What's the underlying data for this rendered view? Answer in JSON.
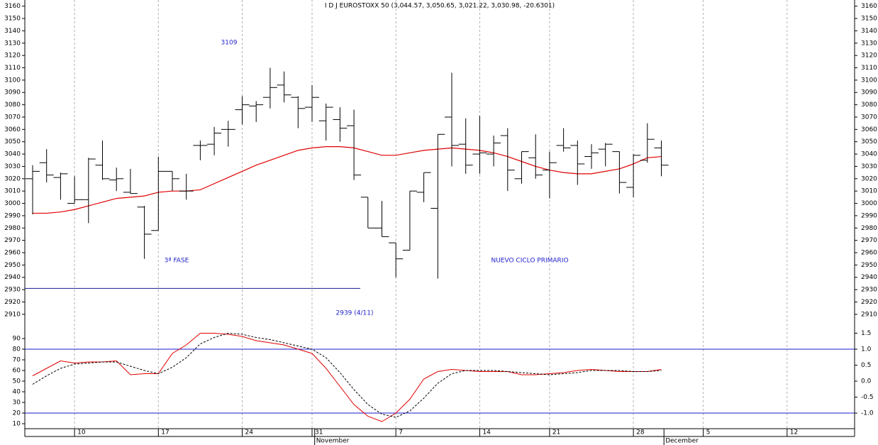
{
  "chart_data": [
    {
      "type": "ohlc",
      "title": "I D J EUROSTOXX 50 (3,044.57, 3,050.65, 3,021.22, 3,030.98, -20.6301)",
      "color": "#000000",
      "open": [
        3020,
        3033,
        3021,
        3000,
        3003,
        3031,
        3019,
        3009,
        2997,
        2978,
        3026,
        3010,
        3047,
        3048,
        3060,
        3076,
        3079,
        3086,
        3096,
        3086,
        3078,
        3067,
        3068,
        3063,
        3005,
        2980,
        2968,
        2962,
        3009,
        2996,
        3070,
        3048,
        3040,
        3040,
        3055,
        3020,
        3037,
        3027,
        3047,
        3047,
        3038,
        3044,
        3042,
        3013,
        3035,
        3045,
        null,
        null,
        null,
        null,
        null,
        null,
        null,
        null,
        null,
        null,
        null,
        null,
        null
      ],
      "high": [
        3031,
        3044,
        3025,
        3022,
        3037,
        3051,
        3029,
        3028,
        2998,
        3038,
        3026,
        3024,
        3051,
        3062,
        3067,
        3087,
        3083,
        3110,
        3107,
        3087,
        3096,
        3081,
        3078,
        3076,
        3005,
        3002,
        2968,
        3010,
        3025,
        3056,
        3106,
        3069,
        3071,
        3055,
        3061,
        3042,
        3056,
        3042,
        3061,
        3051,
        3048,
        3049,
        3042,
        3040,
        3065,
        3051,
        null,
        null,
        null,
        null,
        null,
        null,
        null,
        null,
        null,
        null,
        null,
        null,
        null
      ],
      "low": [
        2991,
        3017,
        3003,
        3000,
        2984,
        3019,
        3010,
        3008,
        2955,
        2978,
        3010,
        3003,
        3035,
        3039,
        3046,
        3064,
        3066,
        3077,
        3082,
        3061,
        3066,
        3051,
        3050,
        3019,
        2980,
        2973,
        2940,
        2962,
        3001,
        2939,
        3030,
        3024,
        3024,
        3030,
        3010,
        3016,
        3020,
        3004,
        3042,
        3015,
        3028,
        3030,
        3008,
        3005,
        3033,
        3022,
        null,
        null,
        null,
        null,
        null,
        null,
        null,
        null,
        null,
        null,
        null,
        null,
        null
      ],
      "close": [
        3026,
        3023,
        3024,
        3003,
        3036,
        3020,
        3020,
        3008,
        2975,
        3026,
        3020,
        3010,
        3047,
        3057,
        3060,
        3080,
        3080,
        3094,
        3088,
        3077,
        3086,
        3078,
        3061,
        3023,
        2980,
        2973,
        2955,
        3010,
        3025,
        3056,
        3047,
        3031,
        3041,
        3049,
        3027,
        3042,
        3023,
        3033,
        3045,
        3032,
        3041,
        3048,
        3017,
        3039,
        3052,
        3031,
        null,
        null,
        null,
        null,
        null,
        null,
        null,
        null,
        null,
        null,
        null,
        null,
        null
      ],
      "moving_average": {
        "color": "#e00000",
        "values": [
          2992,
          2992,
          2993,
          2995,
          2998,
          3001,
          3004,
          3005,
          3006,
          3009,
          3010,
          3010,
          3011,
          3016,
          3021,
          3026,
          3031,
          3035,
          3039,
          3043,
          3045,
          3046,
          3046,
          3045,
          3042,
          3039,
          3039,
          3041,
          3043,
          3044,
          3045,
          3044,
          3043,
          3041,
          3038,
          3034,
          3030,
          3027,
          3025,
          3024,
          3024,
          3026,
          3028,
          3032,
          3037,
          3038,
          null,
          null,
          null,
          null,
          null,
          null,
          null,
          null,
          null,
          null,
          null,
          null,
          null
        ]
      },
      "support_line": {
        "value": 2931,
        "color": "#1a1a8c"
      },
      "annotations": [
        "3109",
        "3ª FASE",
        "NUEVO CICLO PRIMARIO",
        "2939 (4/11)"
      ],
      "annotation_color": "#2222cc",
      "ylim": [
        2903,
        3165
      ],
      "yticks": [
        2910,
        2920,
        2930,
        2940,
        2950,
        2960,
        2970,
        2980,
        2990,
        3000,
        3010,
        3020,
        3030,
        3040,
        3050,
        3060,
        3070,
        3080,
        3090,
        3100,
        3110,
        3120,
        3130,
        3140,
        3150,
        3160
      ]
    },
    {
      "type": "line",
      "categories": [
        null,
        null,
        null,
        "10",
        null,
        null,
        null,
        null,
        null,
        "17",
        null,
        null,
        null,
        null,
        null,
        "24",
        null,
        null,
        null,
        null,
        "31",
        null,
        null,
        null,
        null,
        null,
        "7",
        null,
        null,
        null,
        null,
        null,
        "14",
        null,
        null,
        null,
        null,
        "21",
        null,
        null,
        null,
        null,
        null,
        "28",
        null,
        null,
        null,
        null,
        "5",
        null,
        null,
        null,
        null,
        null,
        "12",
        null,
        null,
        null,
        null
      ],
      "months": [
        null,
        null,
        null,
        null,
        null,
        null,
        null,
        null,
        null,
        null,
        null,
        null,
        null,
        null,
        null,
        null,
        null,
        null,
        null,
        null,
        null,
        "November",
        null,
        null,
        null,
        null,
        null,
        null,
        null,
        null,
        null,
        null,
        null,
        null,
        null,
        null,
        null,
        null,
        null,
        null,
        null,
        null,
        null,
        null,
        null,
        null,
        "December",
        null,
        null,
        null,
        null,
        null,
        null,
        null,
        null,
        null,
        null,
        null,
        null
      ],
      "series": [
        {
          "color": "#e00000",
          "dash": false,
          "values": [
            55,
            62,
            69,
            67,
            68,
            68,
            69,
            56,
            57,
            57,
            76,
            84,
            95,
            95,
            94,
            92,
            88,
            86,
            84,
            80,
            76,
            62,
            45,
            28,
            17,
            12,
            20,
            33,
            52,
            59,
            61,
            60,
            59,
            59,
            59,
            56,
            56,
            57,
            58,
            60,
            61,
            60,
            59,
            59,
            59,
            61,
            null,
            null,
            null,
            null,
            null,
            null,
            null,
            null,
            null,
            null,
            null,
            null,
            null
          ]
        },
        {
          "color": "#000000",
          "dash": true,
          "values": [
            47,
            55,
            62,
            66,
            67,
            68,
            68,
            64,
            60,
            57,
            63,
            72,
            85,
            91,
            95,
            94,
            91,
            89,
            86,
            83,
            80,
            72,
            58,
            42,
            28,
            19,
            16,
            22,
            34,
            48,
            57,
            60,
            60,
            60,
            59,
            58,
            57,
            56,
            57,
            58,
            60,
            60,
            60,
            59,
            59,
            60,
            null,
            null,
            null,
            null,
            null,
            null,
            null,
            null,
            null,
            null,
            null,
            null,
            null
          ]
        }
      ],
      "reference_lines": [
        80,
        20
      ],
      "reference_color": "#1a1acc",
      "ylim": [
        4,
        100
      ],
      "yticks": [
        10,
        20,
        30,
        40,
        50,
        60,
        70,
        80,
        90
      ],
      "y2lim": [
        -1.533,
        1.667
      ],
      "y2ticks": [
        {
          "value": -1.0,
          "label": "-1.0"
        },
        -0.5,
        {
          "value": 0.0,
          "label": "0.0"
        },
        0.5,
        {
          "value": 1.0,
          "label": "1.0"
        },
        1.5
      ]
    }
  ]
}
